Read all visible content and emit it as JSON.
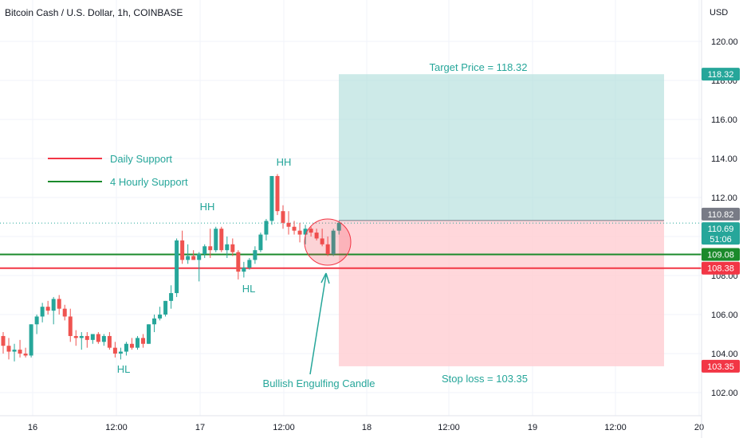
{
  "header": {
    "title": "Bitcoin Cash / U.S. Dollar, 1h, COINBASE"
  },
  "chart_data": {
    "type": "candlestick",
    "title": "Bitcoin Cash / U.S. Dollar, 1h, COINBASE",
    "currency_label": "USD",
    "y_ticks": [
      "120.00",
      "118.00",
      "116.00",
      "114.00",
      "112.00",
      "110.00",
      "108.00",
      "106.00",
      "104.00",
      "102.00"
    ],
    "x_ticks": [
      "16",
      "12:00",
      "17",
      "12:00",
      "18",
      "12:00",
      "19",
      "12:00",
      "20"
    ],
    "ylim": [
      101.0,
      121.5
    ],
    "grid": true,
    "colors": {
      "up": "#26a69a",
      "down": "#ef5350",
      "daily_support": "#f23645",
      "hourly_support": "#1b8a2b",
      "target_zone": "#b2dfdb",
      "stop_zone": "#ffcdd2",
      "annotation": "#26a69a"
    },
    "legend": [
      {
        "label": "Daily Support",
        "color": "#f23645"
      },
      {
        "label": "4 Hourly Support",
        "color": "#1b8a2b"
      }
    ],
    "levels": {
      "daily_support": 108.38,
      "hourly_support": 109.08,
      "entry": 110.82,
      "target": 118.32,
      "stop": 103.35
    },
    "price_badges": [
      {
        "text": "118.32",
        "value": 118.32,
        "color": "#26a69a"
      },
      {
        "text": "110.82",
        "value": 110.82,
        "color": "#787b86"
      },
      {
        "text": "110.69",
        "sub": "51:06",
        "value": 110.69,
        "color": "#26a69a"
      },
      {
        "text": "109.08",
        "value": 109.08,
        "color": "#1b8a2b"
      },
      {
        "text": "108.38",
        "value": 108.38,
        "color": "#f23645"
      },
      {
        "text": "103.35",
        "value": 103.35,
        "color": "#f23645"
      }
    ],
    "annotations": {
      "target_label": "Target Price = 118.32",
      "stop_label": "Stop loss = 103.35",
      "engulfing_label": "Bullish Engulfing Candle",
      "hh1": "HH",
      "hh2": "HH",
      "hl1": "HL",
      "hl2": "HL"
    },
    "candles": [
      {
        "o": 104.9,
        "h": 105.1,
        "l": 104.0,
        "c": 104.4
      },
      {
        "o": 104.4,
        "h": 104.8,
        "l": 103.7,
        "c": 104.1
      },
      {
        "o": 104.1,
        "h": 104.5,
        "l": 103.6,
        "c": 104.2
      },
      {
        "o": 104.2,
        "h": 104.7,
        "l": 103.8,
        "c": 104.0
      },
      {
        "o": 104.0,
        "h": 104.3,
        "l": 103.8,
        "c": 103.9
      },
      {
        "o": 103.9,
        "h": 105.5,
        "l": 103.8,
        "c": 105.5
      },
      {
        "o": 105.5,
        "h": 106.0,
        "l": 105.0,
        "c": 105.9
      },
      {
        "o": 105.9,
        "h": 106.6,
        "l": 105.6,
        "c": 106.4
      },
      {
        "o": 106.4,
        "h": 106.7,
        "l": 106.0,
        "c": 106.2
      },
      {
        "o": 106.2,
        "h": 106.9,
        "l": 105.5,
        "c": 106.8
      },
      {
        "o": 106.8,
        "h": 107.0,
        "l": 106.0,
        "c": 106.3
      },
      {
        "o": 106.3,
        "h": 106.5,
        "l": 105.7,
        "c": 105.9
      },
      {
        "o": 105.9,
        "h": 106.3,
        "l": 104.6,
        "c": 104.9
      },
      {
        "o": 104.9,
        "h": 105.2,
        "l": 104.4,
        "c": 104.8
      },
      {
        "o": 104.8,
        "h": 105.1,
        "l": 104.2,
        "c": 104.9
      },
      {
        "o": 104.9,
        "h": 105.1,
        "l": 104.3,
        "c": 104.7
      },
      {
        "o": 104.7,
        "h": 105.0,
        "l": 104.5,
        "c": 105.0
      },
      {
        "o": 105.0,
        "h": 105.1,
        "l": 104.5,
        "c": 104.6
      },
      {
        "o": 104.6,
        "h": 105.0,
        "l": 104.4,
        "c": 104.9
      },
      {
        "o": 104.9,
        "h": 105.1,
        "l": 104.2,
        "c": 104.3
      },
      {
        "o": 104.3,
        "h": 104.6,
        "l": 103.8,
        "c": 104.0
      },
      {
        "o": 104.0,
        "h": 104.3,
        "l": 103.7,
        "c": 104.1
      },
      {
        "o": 104.1,
        "h": 104.6,
        "l": 103.9,
        "c": 104.5
      },
      {
        "o": 104.5,
        "h": 104.8,
        "l": 104.2,
        "c": 104.3
      },
      {
        "o": 104.3,
        "h": 104.9,
        "l": 104.2,
        "c": 104.8
      },
      {
        "o": 104.8,
        "h": 105.0,
        "l": 104.3,
        "c": 104.5
      },
      {
        "o": 104.5,
        "h": 105.5,
        "l": 104.5,
        "c": 105.5
      },
      {
        "o": 105.5,
        "h": 106.0,
        "l": 105.1,
        "c": 105.8
      },
      {
        "o": 105.8,
        "h": 106.4,
        "l": 105.7,
        "c": 106.0
      },
      {
        "o": 106.0,
        "h": 106.7,
        "l": 105.9,
        "c": 106.7
      },
      {
        "o": 106.7,
        "h": 107.5,
        "l": 106.3,
        "c": 107.1
      },
      {
        "o": 107.1,
        "h": 109.9,
        "l": 106.9,
        "c": 109.8
      },
      {
        "o": 109.8,
        "h": 110.3,
        "l": 108.6,
        "c": 108.8
      },
      {
        "o": 108.8,
        "h": 109.6,
        "l": 108.6,
        "c": 109.0
      },
      {
        "o": 109.0,
        "h": 109.3,
        "l": 108.8,
        "c": 108.8
      },
      {
        "o": 108.8,
        "h": 109.2,
        "l": 107.7,
        "c": 109.1
      },
      {
        "o": 109.1,
        "h": 109.6,
        "l": 108.9,
        "c": 109.5
      },
      {
        "o": 109.5,
        "h": 110.4,
        "l": 108.9,
        "c": 109.3
      },
      {
        "o": 109.3,
        "h": 110.5,
        "l": 109.2,
        "c": 110.4
      },
      {
        "o": 110.4,
        "h": 110.5,
        "l": 109.2,
        "c": 109.3
      },
      {
        "o": 109.3,
        "h": 110.0,
        "l": 108.9,
        "c": 109.6
      },
      {
        "o": 109.6,
        "h": 109.9,
        "l": 109.0,
        "c": 109.2
      },
      {
        "o": 109.2,
        "h": 109.3,
        "l": 107.8,
        "c": 108.2
      },
      {
        "o": 108.2,
        "h": 108.7,
        "l": 107.9,
        "c": 108.4
      },
      {
        "o": 108.4,
        "h": 108.9,
        "l": 108.3,
        "c": 108.8
      },
      {
        "o": 108.8,
        "h": 109.5,
        "l": 108.6,
        "c": 109.3
      },
      {
        "o": 109.3,
        "h": 110.2,
        "l": 109.2,
        "c": 110.1
      },
      {
        "o": 110.1,
        "h": 110.9,
        "l": 109.8,
        "c": 110.8
      },
      {
        "o": 110.8,
        "h": 113.1,
        "l": 110.6,
        "c": 113.1
      },
      {
        "o": 113.1,
        "h": 113.2,
        "l": 111.1,
        "c": 111.3
      },
      {
        "o": 111.3,
        "h": 111.6,
        "l": 110.4,
        "c": 110.7
      },
      {
        "o": 110.7,
        "h": 111.3,
        "l": 110.1,
        "c": 110.5
      },
      {
        "o": 110.5,
        "h": 110.8,
        "l": 110.1,
        "c": 110.3
      },
      {
        "o": 110.3,
        "h": 110.7,
        "l": 109.7,
        "c": 110.1
      },
      {
        "o": 110.1,
        "h": 110.6,
        "l": 109.6,
        "c": 110.4
      },
      {
        "o": 110.4,
        "h": 110.5,
        "l": 110.0,
        "c": 110.2
      },
      {
        "o": 110.2,
        "h": 110.4,
        "l": 109.8,
        "c": 109.9
      },
      {
        "o": 109.9,
        "h": 110.4,
        "l": 109.5,
        "c": 109.6
      },
      {
        "o": 109.6,
        "h": 110.0,
        "l": 109.0,
        "c": 109.1
      },
      {
        "o": 109.1,
        "h": 110.4,
        "l": 109.0,
        "c": 110.3
      },
      {
        "o": 110.3,
        "h": 110.8,
        "l": 110.1,
        "c": 110.7
      }
    ]
  }
}
